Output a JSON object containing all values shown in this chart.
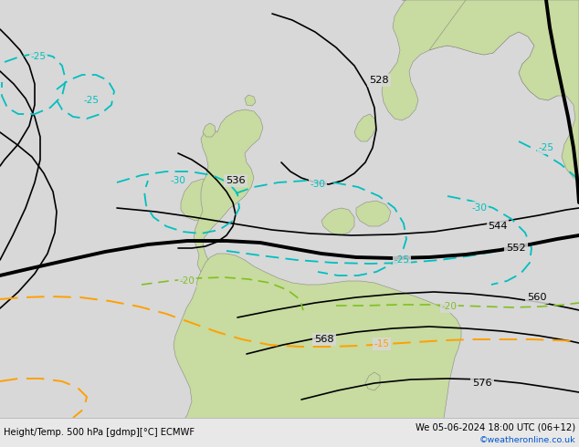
{
  "title_left": "Height/Temp. 500 hPa [gdmp][°C] ECMWF",
  "title_right": "We 05-06-2024 18:00 UTC (06+12)",
  "credit": "©weatheronline.co.uk",
  "bg_sea": "#d8d8d8",
  "bg_land_green": "#c8dba0",
  "bg_land_gray": "#b8b8b8",
  "z500_color": "#000000",
  "temp_cyan_color": "#00bfbf",
  "temp_green_color": "#80c020",
  "temp_orange_color": "#ffa000",
  "fig_width": 6.34,
  "fig_height": 4.9,
  "dpi": 100,
  "z500_lines": {
    "528": {
      "lw": 1.2,
      "bold": false
    },
    "536": {
      "lw": 1.2,
      "bold": false
    },
    "544": {
      "lw": 1.2,
      "bold": false
    },
    "552": {
      "lw": 2.8,
      "bold": true
    },
    "560": {
      "lw": 1.2,
      "bold": false
    },
    "568": {
      "lw": 1.2,
      "bold": false
    },
    "576": {
      "lw": 1.2,
      "bold": false
    }
  }
}
